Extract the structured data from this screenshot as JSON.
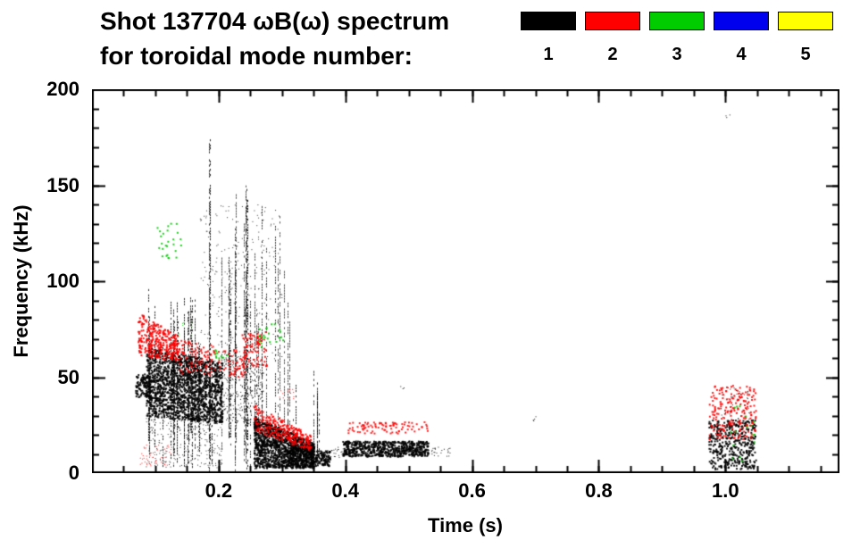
{
  "chart_data": {
    "type": "scatter",
    "title": "Shot 137704 ωB(ω) spectrum",
    "subtitle": "for toroidal mode number:",
    "xlabel": "Time (s)",
    "ylabel": "Frequency (kHz)",
    "xlim": [
      0.0,
      1.18
    ],
    "ylim": [
      0,
      200
    ],
    "xticks": [
      0.2,
      0.4,
      0.6,
      0.8,
      1.0
    ],
    "xtick_labels": [
      "0.2",
      "0.4",
      "0.6",
      "0.8",
      "1.0"
    ],
    "x_minor_step": 0.05,
    "yticks": [
      0,
      50,
      100,
      150,
      200
    ],
    "ytick_labels": [
      "0",
      "50",
      "100",
      "150",
      "200"
    ],
    "y_minor_step": 10,
    "grid": false,
    "legend_position": "top-right",
    "legend": [
      {
        "label": "1",
        "color": "#000000"
      },
      {
        "label": "2",
        "color": "#ff0000"
      },
      {
        "label": "3",
        "color": "#00cc00"
      },
      {
        "label": "4",
        "color": "#0000ee"
      },
      {
        "label": "5",
        "color": "#ffff00"
      }
    ],
    "series": [
      {
        "name": "n=1",
        "color": "#000000",
        "clusters": [
          {
            "kind": "points",
            "t": [
              0.068,
              0.092
            ],
            "f": [
              40,
              52
            ],
            "n": 120,
            "s": 2
          },
          {
            "kind": "points",
            "t": [
              0.085,
              0.205
            ],
            "f": [
              30,
              66
            ],
            "fe": [
              26,
              58
            ],
            "n": 1600,
            "s": 2
          },
          {
            "kind": "points",
            "t": [
              0.085,
              0.205
            ],
            "f": [
              3,
              30
            ],
            "n": 260,
            "s": 1,
            "a": 0.8
          },
          {
            "kind": "points",
            "t": [
              0.205,
              0.27
            ],
            "f": [
              28,
              66
            ],
            "fe": [
              24,
              56
            ],
            "n": 300,
            "s": 1
          },
          {
            "kind": "points",
            "t": [
              0.17,
              0.3
            ],
            "f": [
              58,
              140
            ],
            "n": 230,
            "s": 1,
            "a": 0.8
          },
          {
            "kind": "points",
            "t": [
              0.255,
              0.35
            ],
            "f": [
              3,
              30
            ],
            "fe": [
              3,
              16
            ],
            "n": 1400,
            "s": 2
          },
          {
            "kind": "points",
            "t": [
              0.345,
              0.375
            ],
            "f": [
              4,
              12
            ],
            "n": 120,
            "s": 2
          },
          {
            "kind": "points",
            "t": [
              0.37,
              0.4
            ],
            "f": [
              8,
              14
            ],
            "n": 30,
            "s": 1
          },
          {
            "kind": "points",
            "t": [
              0.395,
              0.53
            ],
            "f": [
              9,
              17
            ],
            "n": 650,
            "s": 2
          },
          {
            "kind": "points",
            "t": [
              0.53,
              0.565
            ],
            "f": [
              9,
              14
            ],
            "n": 25,
            "s": 1
          },
          {
            "kind": "points",
            "t": [
              0.973,
              1.047
            ],
            "f": [
              2,
              28
            ],
            "n": 420,
            "s": 2
          },
          {
            "kind": "points",
            "t": [
              0.99,
              1.04
            ],
            "f": [
              28,
              45
            ],
            "n": 50,
            "s": 1
          },
          {
            "kind": "points",
            "t": [
              1.0,
              1.007
            ],
            "f": [
              183,
              187
            ],
            "n": 3,
            "s": 1
          },
          {
            "kind": "points",
            "t": [
              0.695,
              0.703
            ],
            "f": [
              25,
              31
            ],
            "n": 4,
            "s": 1
          },
          {
            "kind": "points",
            "t": [
              0.486,
              0.493
            ],
            "f": [
              43,
              47
            ],
            "n": 3,
            "s": 1
          },
          {
            "kind": "vlines",
            "t": [
              0.088,
              0.2
            ],
            "n": 26,
            "top": [
              58,
              96
            ],
            "bot": [
              0,
              26
            ],
            "a": 0.8
          },
          {
            "kind": "vlines",
            "t": [
              0.2,
              0.26
            ],
            "n": 16,
            "top": [
              85,
              160
            ],
            "bot": [
              0,
              22
            ],
            "a": 0.7
          },
          {
            "kind": "vlines",
            "t": [
              0.181,
              0.19
            ],
            "n": 2,
            "top": [
              170,
              177
            ],
            "bot": [
              0,
              8
            ],
            "a": 0.85
          },
          {
            "kind": "vlines",
            "t": [
              0.243,
              0.252
            ],
            "n": 2,
            "top": [
              142,
              150
            ],
            "bot": [
              0,
              8
            ],
            "a": 0.85
          },
          {
            "kind": "vlines",
            "t": [
              0.26,
              0.315
            ],
            "n": 10,
            "top": [
              70,
              140
            ],
            "bot": [
              4,
              28
            ],
            "a": 0.7
          },
          {
            "kind": "vlines",
            "t": [
              0.3,
              0.36
            ],
            "n": 8,
            "top": [
              28,
              55
            ],
            "bot": [
              4,
              12
            ],
            "a": 0.8
          }
        ]
      },
      {
        "name": "n=2",
        "color": "#ff0000",
        "clusters": [
          {
            "kind": "points",
            "t": [
              0.072,
              0.135
            ],
            "f": [
              62,
              84
            ],
            "fe": [
              58,
              72
            ],
            "n": 300,
            "s": 2
          },
          {
            "kind": "points",
            "t": [
              0.135,
              0.24
            ],
            "f": [
              52,
              70
            ],
            "fe": [
              50,
              64
            ],
            "n": 150,
            "s": 2,
            "a": 0.85
          },
          {
            "kind": "points",
            "t": [
              0.235,
              0.275
            ],
            "f": [
              56,
              74
            ],
            "n": 80,
            "s": 2
          },
          {
            "kind": "points",
            "t": [
              0.255,
              0.345
            ],
            "f": [
              22,
              36
            ],
            "fe": [
              12,
              20
            ],
            "n": 260,
            "s": 2
          },
          {
            "kind": "points",
            "t": [
              0.4,
              0.53
            ],
            "f": [
              21,
              27
            ],
            "n": 90,
            "s": 2,
            "a": 0.85
          },
          {
            "kind": "points",
            "t": [
              0.973,
              1.047
            ],
            "f": [
              18,
              46
            ],
            "n": 200,
            "s": 2
          },
          {
            "kind": "points",
            "t": [
              0.075,
              0.125
            ],
            "f": [
              4,
              15
            ],
            "n": 50,
            "s": 1
          },
          {
            "kind": "points",
            "t": [
              0.295,
              0.32
            ],
            "f": [
              37,
              44
            ],
            "n": 12,
            "s": 1
          }
        ]
      },
      {
        "name": "n=3",
        "color": "#00cc00",
        "clusters": [
          {
            "kind": "points",
            "t": [
              0.1,
              0.14
            ],
            "f": [
              112,
              132
            ],
            "n": 26,
            "s": 2
          },
          {
            "kind": "points",
            "t": [
              0.19,
              0.215
            ],
            "f": [
              60,
              68
            ],
            "n": 10,
            "s": 2
          },
          {
            "kind": "points",
            "t": [
              0.262,
              0.302
            ],
            "f": [
              66,
              78
            ],
            "n": 22,
            "s": 2
          },
          {
            "kind": "points",
            "t": [
              0.998,
              1.045
            ],
            "f": [
              6,
              36
            ],
            "n": 16,
            "s": 2
          },
          {
            "kind": "points",
            "t": [
              0.135,
              0.165
            ],
            "f": [
              70,
              80
            ],
            "n": 8,
            "s": 1
          }
        ]
      },
      {
        "name": "n=4",
        "color": "#0000ee",
        "clusters": []
      },
      {
        "name": "n=5",
        "color": "#ffff00",
        "clusters": []
      }
    ]
  }
}
